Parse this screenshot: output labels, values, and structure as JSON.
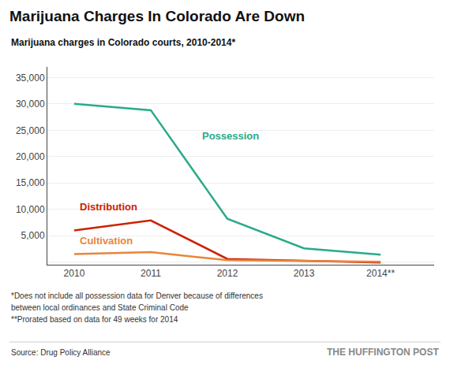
{
  "chart_data": {
    "type": "line",
    "title": "Marijuana Charges In Colorado Are Down",
    "subtitle": "Marijuana charges in Colorado courts, 2010-2014*",
    "x": [
      2010,
      2011,
      2012,
      2013,
      2014
    ],
    "series": [
      {
        "name": "Possession",
        "color": "#2aaa8a",
        "values": [
          30000,
          28800,
          8200,
          2600,
          1400
        ]
      },
      {
        "name": "Distribution",
        "color": "#cc2200",
        "values": [
          6000,
          7900,
          600,
          200,
          -100
        ]
      },
      {
        "name": "Cultivation",
        "color": "#e8853d",
        "values": [
          1500,
          1900,
          350,
          150,
          50
        ]
      }
    ],
    "annotations": [
      {
        "text": "Possession",
        "x": 2011.65,
        "y": 22500
      },
      {
        "text": "Distribution",
        "x": 2010.05,
        "y": 9000
      },
      {
        "text": "Cultivation",
        "x": 2010.05,
        "y": 2600
      }
    ],
    "xlim": [
      2009.65,
      2014.7
    ],
    "xticks": [
      2010,
      2011,
      2012,
      2013,
      {
        "value": 2014,
        "label": "2014**"
      }
    ],
    "ylim": [
      -500,
      37000
    ],
    "yticks": [
      {
        "value": 0,
        "label": null
      },
      {
        "value": 5000,
        "label": "5,000"
      },
      {
        "value": 10000,
        "label": "10,000"
      },
      {
        "value": 15000,
        "label": "15,000"
      },
      {
        "value": 20000,
        "label": "20,000"
      },
      {
        "value": 25000,
        "label": "25,000"
      },
      {
        "value": 30000,
        "label": "30,000"
      },
      {
        "value": 35000,
        "label": "35,000"
      }
    ],
    "grid": true,
    "legend": false,
    "notes": [
      "*Does not include all possession data for Denver because of differences",
      "between local ordinances and State Criminal Code",
      "**Prorated based on data for 49 weeks for 2014"
    ],
    "source": "Source: Drug Policy Alliance",
    "brand": "THE HUFFINGTON POST"
  }
}
